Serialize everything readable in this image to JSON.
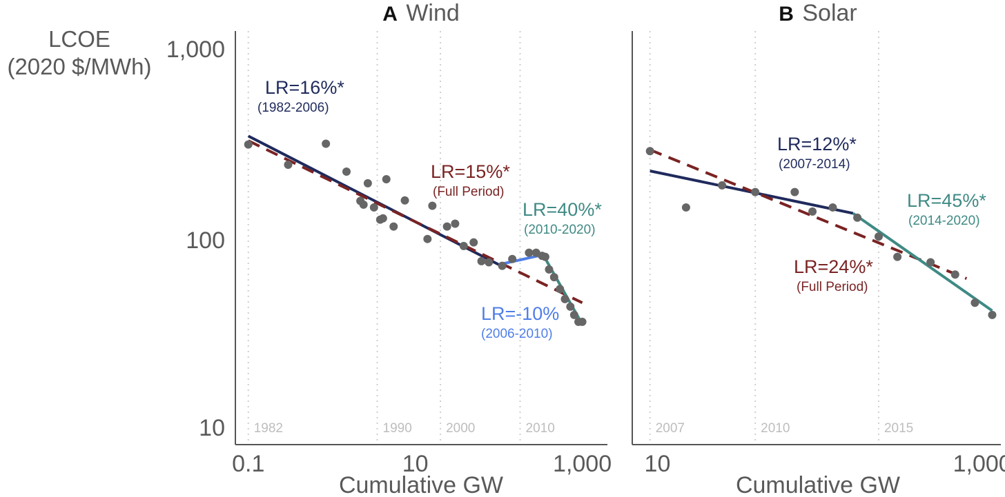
{
  "y_axis_label": [
    "LCOE",
    "(2020 $/MWh)"
  ],
  "y_ticks": [
    {
      "value": 1000,
      "label": "1,000"
    },
    {
      "value": 100,
      "label": "100"
    },
    {
      "value": 10,
      "label": "10"
    }
  ],
  "colors": {
    "points": "#666666",
    "segment1": "#1f2a5c",
    "full_period": "#7a2323",
    "wind_middle": "#4f7ee8",
    "last_segment": "#3f8a84",
    "axis": "#555555",
    "gridline": "#cfcfcf"
  },
  "chart_data": [
    {
      "panel": "A",
      "title": "Wind",
      "type": "scatter",
      "xscale": "log",
      "yscale": "log",
      "xlim": [
        0.07,
        2000
      ],
      "ylim": [
        7,
        1300
      ],
      "xlabel": "Cumulative GW",
      "x_ticks": [
        {
          "value": 0.1,
          "label": "0.1"
        },
        {
          "value": 10,
          "label": "10"
        },
        {
          "value": 1000,
          "label": "1,000"
        }
      ],
      "year_markers": [
        {
          "value": 0.1,
          "label": "1982"
        },
        {
          "value": 3.5,
          "label": "1990"
        },
        {
          "value": 20,
          "label": "2000"
        },
        {
          "value": 180,
          "label": "2010"
        }
      ],
      "points": [
        [
          0.1,
          310
        ],
        [
          0.3,
          240
        ],
        [
          0.85,
          313
        ],
        [
          1.5,
          220
        ],
        [
          2.7,
          190
        ],
        [
          2.2,
          152
        ],
        [
          2.4,
          145
        ],
        [
          3.2,
          140
        ],
        [
          3.8,
          120
        ],
        [
          4.1,
          122
        ],
        [
          4.5,
          200
        ],
        [
          5.5,
          110
        ],
        [
          7.5,
          153
        ],
        [
          14,
          94
        ],
        [
          16,
          143
        ],
        [
          24,
          110
        ],
        [
          30,
          114
        ],
        [
          38,
          86
        ],
        [
          50,
          90
        ],
        [
          62,
          71
        ],
        [
          76,
          70
        ],
        [
          110,
          67
        ],
        [
          145,
          73
        ],
        [
          230,
          79
        ],
        [
          280,
          79
        ],
        [
          330,
          76
        ],
        [
          360,
          75
        ],
        [
          400,
          64
        ],
        [
          460,
          58
        ],
        [
          540,
          50
        ],
        [
          620,
          44
        ],
        [
          720,
          40
        ],
        [
          800,
          36
        ],
        [
          900,
          33
        ],
        [
          1000,
          33
        ]
      ],
      "fits": [
        {
          "name": "LR=16%*",
          "period": "(1982-2006)",
          "style": "solid",
          "color_key": "segment1",
          "x": [
            0.1,
            100
          ],
          "y": [
            345,
            68
          ]
        },
        {
          "name": "LR=15%*",
          "period": "(Full Period)",
          "style": "dashed",
          "color_key": "full_period",
          "x": [
            0.1,
            1000
          ],
          "y": [
            325,
            42
          ]
        },
        {
          "name": "LR=-10%",
          "period": "(2006-2010)",
          "style": "solid",
          "color_key": "wind_middle",
          "x": [
            100,
            340
          ],
          "y": [
            68,
            77
          ]
        },
        {
          "name": "LR=40%*",
          "period": "(2010-2020)",
          "style": "solid",
          "color_key": "last_segment",
          "x": [
            340,
            1000
          ],
          "y": [
            77,
            32
          ]
        }
      ]
    },
    {
      "panel": "B",
      "title": "Solar",
      "type": "scatter",
      "xscale": "log",
      "yscale": "log",
      "xlim": [
        7,
        1300
      ],
      "ylim": [
        7,
        1300
      ],
      "xlabel": "Cumulative GW",
      "x_ticks": [
        {
          "value": 10,
          "label": "10"
        },
        {
          "value": 1000,
          "label": "1,000"
        }
      ],
      "year_markers": [
        {
          "value": 9,
          "label": "2007"
        },
        {
          "value": 40,
          "label": "2010"
        },
        {
          "value": 230,
          "label": "2015"
        }
      ],
      "points": [
        [
          9,
          285
        ],
        [
          15,
          140
        ],
        [
          25,
          185
        ],
        [
          40,
          170
        ],
        [
          70,
          170
        ],
        [
          90,
          133
        ],
        [
          120,
          140
        ],
        [
          170,
          123
        ],
        [
          230,
          97
        ],
        [
          300,
          75
        ],
        [
          480,
          70
        ],
        [
          680,
          60
        ],
        [
          900,
          42
        ],
        [
          1150,
          36
        ]
      ],
      "fits": [
        {
          "name": "LR=12%*",
          "period": "(2007-2014)",
          "style": "solid",
          "color_key": "segment1",
          "x": [
            9,
            160
          ],
          "y": [
            222,
            130
          ]
        },
        {
          "name": "LR=24%*",
          "period": "(Full Period)",
          "style": "dashed",
          "color_key": "full_period",
          "x": [
            9,
            800
          ],
          "y": [
            290,
            57
          ]
        },
        {
          "name": "LR=45%*",
          "period": "(2014-2020)",
          "style": "solid",
          "color_key": "last_segment",
          "x": [
            160,
            1150
          ],
          "y": [
            130,
            38
          ]
        }
      ]
    }
  ]
}
